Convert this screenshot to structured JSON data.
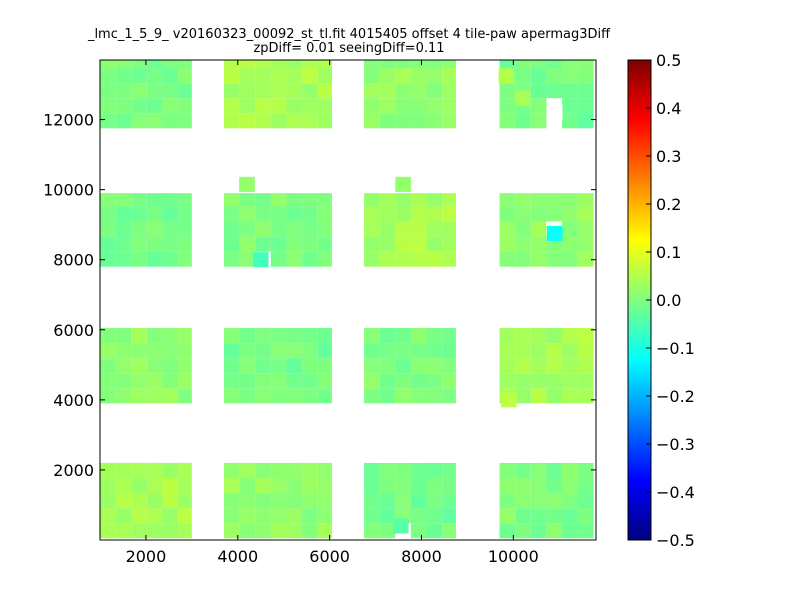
{
  "chart_data": {
    "type": "heatmap",
    "title": "_lmc_1_5_9_ v20160323_00092_st_tl.fit 4015405 offset 4 tile-paw apermag3Diff",
    "subtitle": "zpDiff= 0.01 seeingDiff=0.11",
    "xlim": [
      1000,
      11800
    ],
    "ylim": [
      0,
      13700
    ],
    "x_ticks": [
      2000,
      4000,
      6000,
      8000,
      10000
    ],
    "x_tick_labels": [
      "2000",
      "4000",
      "6000",
      "8000",
      "10000"
    ],
    "y_ticks": [
      2000,
      4000,
      6000,
      8000,
      10000,
      12000
    ],
    "y_tick_labels": [
      "2000",
      "4000",
      "6000",
      "8000",
      "10000",
      "12000"
    ],
    "colorbar": {
      "colormap": "jet",
      "range": [
        -0.5,
        0.5
      ],
      "ticks": [
        0.5,
        0.4,
        0.3,
        0.2,
        0.1,
        0.0,
        -0.1,
        -0.2,
        -0.3,
        -0.4,
        -0.5
      ],
      "tick_labels": [
        "0.5",
        "0.4",
        "0.3",
        "0.2",
        "0.1",
        "0.0",
        "−0.1",
        "−0.2",
        "−0.3",
        "−0.4",
        "−0.5"
      ]
    },
    "grid": false,
    "cell_size": [
      340,
      430
    ],
    "detectors": {
      "x_ranges": [
        [
          1000,
          3000
        ],
        [
          3700,
          6050
        ],
        [
          6750,
          8750
        ],
        [
          9700,
          11750
        ]
      ],
      "y_ranges": [
        [
          50,
          2200
        ],
        [
          3900,
          6050
        ],
        [
          7800,
          9900
        ],
        [
          11750,
          13700
        ]
      ],
      "base_values": [
        0.04,
        0.02,
        -0.01,
        0.0
      ],
      "variation": 0.04
    },
    "extra_cells": [
      {
        "x": 4200,
        "y": 10150,
        "value": 0.02
      },
      {
        "x": 7600,
        "y": 10150,
        "value": 0.02
      },
      {
        "x": 10200,
        "y": 12600,
        "value": 0.04
      },
      {
        "x": 9900,
        "y": 4000,
        "value": 0.06
      },
      {
        "x": 9850,
        "y": 13250,
        "value": 0.05
      }
    ],
    "special_cells": [
      {
        "x": 10900,
        "y": 8750,
        "value": -0.12
      },
      {
        "x": 10900,
        "y": 12200,
        "value": null
      },
      {
        "x": 4500,
        "y": 8000,
        "value": -0.06
      },
      {
        "x": 7550,
        "y": 400,
        "value": -0.04
      }
    ]
  }
}
